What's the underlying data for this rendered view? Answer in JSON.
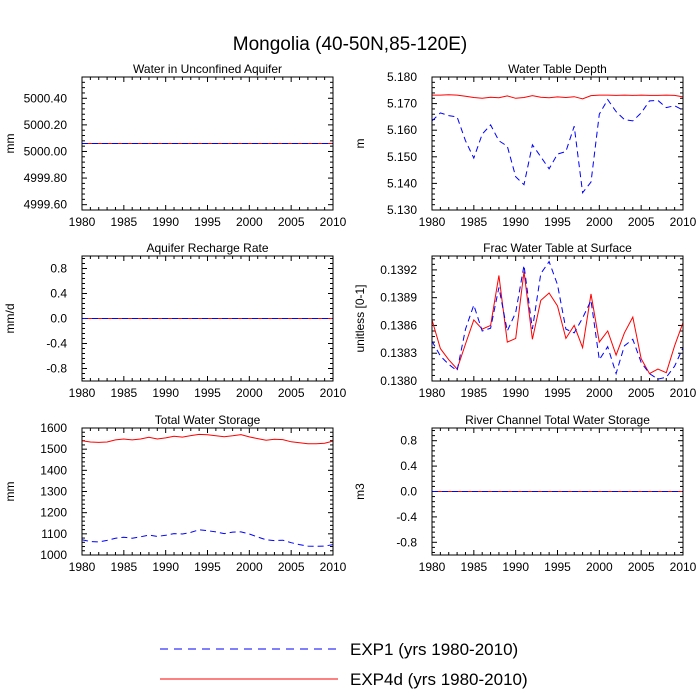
{
  "figure": {
    "title": "Mongolia (40-50N,85-120E)",
    "legend": [
      {
        "label": "EXP1 (yrs 1980-2010)",
        "color": "#0000ff",
        "dash": "dashed"
      },
      {
        "label": "EXP4d (yrs 1980-2010)",
        "color": "#ff0000",
        "dash": "solid"
      }
    ]
  },
  "chart_data": [
    {
      "type": "line",
      "title": "Water in Unconfined Aquifer",
      "ylabel": "mm",
      "xlim": [
        1980,
        2010
      ],
      "ylim": [
        4999.56,
        5000.56
      ],
      "xticks": [
        1980,
        1985,
        1990,
        1995,
        2000,
        2005,
        2010
      ],
      "xtick_labels": [
        "1980",
        "1985",
        "1990",
        "1995",
        "2000",
        "2005",
        "2010"
      ],
      "yticks": [
        4999.6,
        4999.8,
        5000.0,
        5000.2,
        5000.4
      ],
      "ytick_labels": [
        "4999.60",
        "4999.80",
        "5000.00",
        "5000.20",
        "5000.40"
      ],
      "x": [
        1980,
        2010
      ],
      "series": [
        {
          "name": "EXP4d (yrs 1980-2010)",
          "color": "#ff0000",
          "dash": "solid",
          "values": [
            5000.06,
            5000.06
          ]
        },
        {
          "name": "EXP1 (yrs 1980-2010)",
          "color": "#0000ff",
          "dash": "dashed",
          "values": [
            5000.06,
            5000.06
          ]
        }
      ]
    },
    {
      "type": "line",
      "title": "Water Table Depth",
      "ylabel": "m",
      "xlim": [
        1980,
        2010
      ],
      "ylim": [
        5.13,
        5.18
      ],
      "xticks": [
        1980,
        1985,
        1990,
        1995,
        2000,
        2005,
        2010
      ],
      "xtick_labels": [
        "1980",
        "1985",
        "1990",
        "1995",
        "2000",
        "2005",
        "2010"
      ],
      "yticks": [
        5.13,
        5.14,
        5.15,
        5.16,
        5.17,
        5.18
      ],
      "ytick_labels": [
        "5.130",
        "5.140",
        "5.150",
        "5.160",
        "5.170",
        "5.180"
      ],
      "x": [
        1980,
        1981,
        1982,
        1983,
        1984,
        1985,
        1986,
        1987,
        1988,
        1989,
        1990,
        1991,
        1992,
        1993,
        1994,
        1995,
        1996,
        1997,
        1998,
        1999,
        2000,
        2001,
        2002,
        2003,
        2004,
        2005,
        2006,
        2007,
        2008,
        2009,
        2010
      ],
      "series": [
        {
          "name": "EXP4d (yrs 1980-2010)",
          "color": "#ff0000",
          "dash": "solid",
          "values": [
            5.1732,
            5.1732,
            5.1733,
            5.1732,
            5.1728,
            5.1723,
            5.172,
            5.1724,
            5.1722,
            5.1729,
            5.172,
            5.1723,
            5.173,
            5.1724,
            5.1722,
            5.1725,
            5.1723,
            5.1726,
            5.1718,
            5.173,
            5.1732,
            5.1732,
            5.1731,
            5.1732,
            5.1731,
            5.1732,
            5.1731,
            5.1731,
            5.1732,
            5.1731,
            5.1725
          ]
        },
        {
          "name": "EXP1 (yrs 1980-2010)",
          "color": "#0000ff",
          "dash": "dashed",
          "values": [
            5.1635,
            5.1665,
            5.1655,
            5.165,
            5.156,
            5.1495,
            5.1585,
            5.162,
            5.156,
            5.154,
            5.1425,
            5.1395,
            5.1545,
            5.15,
            5.1455,
            5.151,
            5.152,
            5.1615,
            5.1365,
            5.1405,
            5.166,
            5.1715,
            5.167,
            5.164,
            5.1635,
            5.1665,
            5.171,
            5.1712,
            5.1685,
            5.1692,
            5.1675
          ]
        }
      ]
    },
    {
      "type": "line",
      "title": "Aquifer Recharge Rate",
      "ylabel": "mm/d",
      "xlim": [
        1980,
        2010
      ],
      "ylim": [
        -1.0,
        1.0
      ],
      "xticks": [
        1980,
        1985,
        1990,
        1995,
        2000,
        2005,
        2010
      ],
      "xtick_labels": [
        "1980",
        "1985",
        "1990",
        "1995",
        "2000",
        "2005",
        "2010"
      ],
      "yticks": [
        -0.8,
        -0.4,
        0.0,
        0.4,
        0.8
      ],
      "ytick_labels": [
        "-0.8",
        "-0.4",
        "0.0",
        "0.4",
        "0.8"
      ],
      "x": [
        1980,
        2010
      ],
      "series": [
        {
          "name": "EXP4d (yrs 1980-2010)",
          "color": "#ff0000",
          "dash": "solid",
          "values": [
            0.0,
            0.0
          ]
        },
        {
          "name": "EXP1 (yrs 1980-2010)",
          "color": "#0000ff",
          "dash": "dashed",
          "values": [
            0.0,
            0.0
          ]
        }
      ]
    },
    {
      "type": "line",
      "title": "Frac Water Table at Surface",
      "ylabel": "unitless [0-1]",
      "xlim": [
        1980,
        2010
      ],
      "ylim": [
        0.138,
        0.13935
      ],
      "xticks": [
        1980,
        1985,
        1990,
        1995,
        2000,
        2005,
        2010
      ],
      "xtick_labels": [
        "1980",
        "1985",
        "1990",
        "1995",
        "2000",
        "2005",
        "2010"
      ],
      "yticks": [
        0.138,
        0.1383,
        0.1386,
        0.1389,
        0.1392
      ],
      "ytick_labels": [
        "0.1380",
        "0.1383",
        "0.1386",
        "0.1389",
        "0.1392"
      ],
      "x": [
        1980,
        1981,
        1982,
        1983,
        1984,
        1985,
        1986,
        1987,
        1988,
        1989,
        1990,
        1991,
        1992,
        1993,
        1994,
        1995,
        1996,
        1997,
        1998,
        1999,
        2000,
        2001,
        2002,
        2003,
        2004,
        2005,
        2006,
        2007,
        2008,
        2009,
        2010
      ],
      "series": [
        {
          "name": "EXP4d (yrs 1980-2010)",
          "color": "#ff0000",
          "dash": "solid",
          "values": [
            0.13866,
            0.13835,
            0.13823,
            0.13813,
            0.1384,
            0.13866,
            0.13856,
            0.1386,
            0.13914,
            0.13842,
            0.13846,
            0.13918,
            0.13845,
            0.13887,
            0.13895,
            0.13881,
            0.13846,
            0.1386,
            0.13836,
            0.13894,
            0.13842,
            0.13854,
            0.13828,
            0.13852,
            0.13869,
            0.13824,
            0.13808,
            0.13813,
            0.13809,
            0.13838,
            0.13863
          ]
        },
        {
          "name": "EXP1 (yrs 1980-2010)",
          "color": "#0000ff",
          "dash": "dashed",
          "values": [
            0.13843,
            0.13827,
            0.13818,
            0.13811,
            0.13856,
            0.13882,
            0.13854,
            0.13857,
            0.13901,
            0.13854,
            0.13874,
            0.13925,
            0.13856,
            0.13916,
            0.13929,
            0.13904,
            0.13856,
            0.13852,
            0.13868,
            0.13887,
            0.13823,
            0.13837,
            0.13808,
            0.13838,
            0.13845,
            0.1382,
            0.13808,
            0.13802,
            0.13804,
            0.13816,
            0.13836
          ]
        }
      ]
    },
    {
      "type": "line",
      "title": "Total Water Storage",
      "ylabel": "mm",
      "xlim": [
        1980,
        2010
      ],
      "ylim": [
        1000,
        1600
      ],
      "xticks": [
        1980,
        1985,
        1990,
        1995,
        2000,
        2005,
        2010
      ],
      "xtick_labels": [
        "1980",
        "1985",
        "1990",
        "1995",
        "2000",
        "2005",
        "2010"
      ],
      "yticks": [
        1000,
        1100,
        1200,
        1300,
        1400,
        1500,
        1600
      ],
      "ytick_labels": [
        "1000",
        "1100",
        "1200",
        "1300",
        "1400",
        "1500",
        "1600"
      ],
      "x": [
        1980,
        1981,
        1982,
        1983,
        1984,
        1985,
        1986,
        1987,
        1988,
        1989,
        1990,
        1991,
        1992,
        1993,
        1994,
        1995,
        1996,
        1997,
        1998,
        1999,
        2000,
        2001,
        2002,
        2003,
        2004,
        2005,
        2006,
        2007,
        2008,
        2009,
        2010
      ],
      "series": [
        {
          "name": "EXP4d (yrs 1980-2010)",
          "color": "#ff0000",
          "dash": "solid",
          "values": [
            1540,
            1534,
            1532,
            1534,
            1544,
            1548,
            1544,
            1548,
            1556,
            1548,
            1553,
            1561,
            1557,
            1564,
            1570,
            1568,
            1563,
            1559,
            1563,
            1569,
            1558,
            1550,
            1542,
            1547,
            1545,
            1535,
            1530,
            1526,
            1526,
            1528,
            1538
          ]
        },
        {
          "name": "EXP1 (yrs 1980-2010)",
          "color": "#0000ff",
          "dash": "dashed",
          "values": [
            1072,
            1064,
            1062,
            1069,
            1079,
            1084,
            1079,
            1086,
            1094,
            1088,
            1093,
            1101,
            1099,
            1107,
            1119,
            1115,
            1109,
            1101,
            1108,
            1109,
            1099,
            1085,
            1072,
            1068,
            1070,
            1058,
            1049,
            1042,
            1041,
            1042,
            1049
          ]
        }
      ]
    },
    {
      "type": "line",
      "title": "River Channel Total Water Storage",
      "ylabel": "m3",
      "xlim": [
        1980,
        2010
      ],
      "ylim": [
        -1.0,
        1.0
      ],
      "xticks": [
        1980,
        1985,
        1990,
        1995,
        2000,
        2005,
        2010
      ],
      "xtick_labels": [
        "1980",
        "1985",
        "1990",
        "1995",
        "2000",
        "2005",
        "2010"
      ],
      "yticks": [
        -0.8,
        -0.4,
        0.0,
        0.4,
        0.8
      ],
      "ytick_labels": [
        "-0.8",
        "-0.4",
        "0.0",
        "0.4",
        "0.8"
      ],
      "x": [
        1980,
        2010
      ],
      "series": [
        {
          "name": "EXP4d (yrs 1980-2010)",
          "color": "#ff0000",
          "dash": "solid",
          "values": [
            0.0,
            0.0
          ]
        },
        {
          "name": "EXP1 (yrs 1980-2010)",
          "color": "#0000ff",
          "dash": "dashed",
          "values": [
            0.0,
            0.0
          ]
        }
      ]
    }
  ]
}
